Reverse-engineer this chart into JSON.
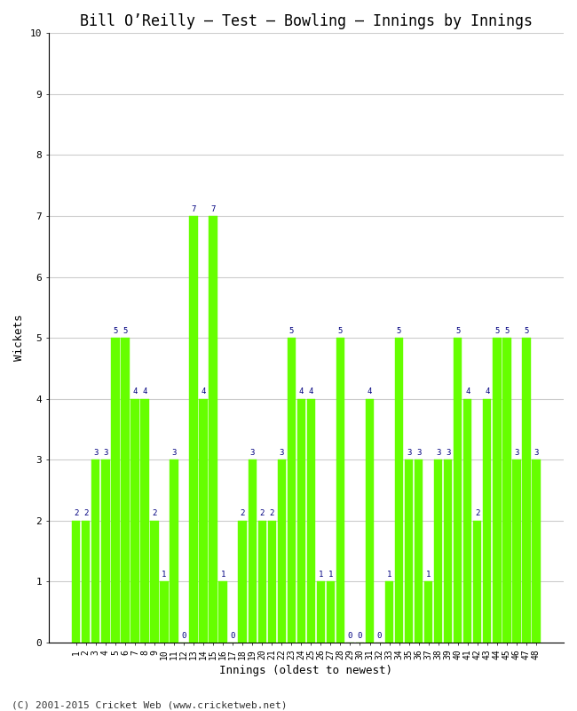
{
  "title": "Bill O’Reilly – Test – Bowling – Innings by Innings",
  "xlabel": "Innings (oldest to newest)",
  "ylabel": "Wickets",
  "footer": "(C) 2001-2015 Cricket Web (www.cricketweb.net)",
  "innings": [
    1,
    2,
    3,
    4,
    5,
    6,
    7,
    8,
    9,
    10,
    11,
    12,
    13,
    14,
    15,
    16,
    17,
    18,
    19,
    20,
    21,
    22,
    23,
    24,
    25,
    26,
    27,
    28,
    29,
    30,
    31,
    32,
    33,
    34,
    35,
    36,
    37,
    38,
    39,
    40,
    41,
    42,
    43,
    44,
    45,
    46,
    47,
    48
  ],
  "wickets": [
    2,
    2,
    3,
    3,
    5,
    5,
    4,
    4,
    2,
    1,
    3,
    0,
    7,
    4,
    7,
    1,
    0,
    2,
    3,
    2,
    2,
    3,
    5,
    4,
    4,
    1,
    1,
    5,
    0,
    0,
    4,
    0,
    1,
    5,
    3,
    3,
    1,
    3,
    3,
    5,
    4,
    2,
    4,
    5,
    5,
    3,
    5,
    3
  ],
  "bar_color": "#66ff00",
  "bar_edge_color": "#66ff00",
  "label_color": "#000080",
  "background_color": "#ffffff",
  "ylim": [
    0,
    10
  ],
  "yticks": [
    0,
    1,
    2,
    3,
    4,
    5,
    6,
    7,
    8,
    9,
    10
  ],
  "grid_color": "#cccccc",
  "title_fontsize": 12,
  "label_fontsize": 9,
  "tick_fontsize": 7,
  "bar_label_fontsize": 6.5,
  "footer_fontsize": 8
}
